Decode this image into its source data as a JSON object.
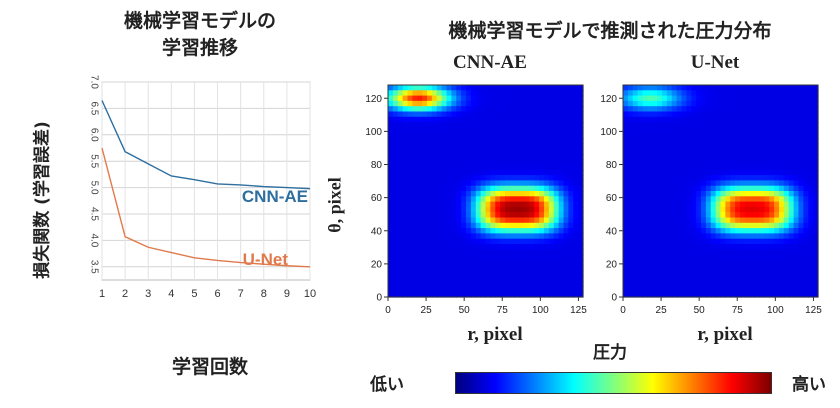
{
  "left_panel": {
    "title_line1": "機械学習モデルの",
    "title_line2": "学習推移"
  },
  "right_panel": {
    "title": "機械学習モデルで推測された圧力分布"
  },
  "colorbar": {
    "label": "圧力",
    "low_label": "低い",
    "high_label": "高い"
  },
  "colors": {
    "cnn_ae": "#2e6fa0",
    "u_net": "#e07a4c",
    "colormap": [
      "#00007f",
      "#0000ff",
      "#0080ff",
      "#00ffff",
      "#80ff80",
      "#ffff00",
      "#ff8000",
      "#ff0000",
      "#7f0000"
    ]
  },
  "chart_data": [
    {
      "type": "line",
      "title": "",
      "xlabel": "学習回数",
      "ylabel": "損失関数 (学習誤差)",
      "x": [
        1,
        2,
        3,
        4,
        5,
        6,
        7,
        8,
        9,
        10
      ],
      "xticks": [
        "1",
        "2",
        "3",
        "4",
        "5",
        "6",
        "7",
        "8",
        "9",
        "10"
      ],
      "yticks": [
        "3.5",
        "4.0",
        "4.5",
        "5.0",
        "5.5",
        "6.0",
        "6.5",
        "7.0"
      ],
      "ylim": [
        3.25,
        7.0
      ],
      "grid": true,
      "series": [
        {
          "name": "CNN-AE",
          "values": [
            6.65,
            5.68,
            5.45,
            5.22,
            5.15,
            5.07,
            5.05,
            5.02,
            5.0,
            4.98
          ]
        },
        {
          "name": "U-Net",
          "values": [
            5.75,
            4.07,
            3.87,
            3.77,
            3.67,
            3.62,
            3.58,
            3.55,
            3.52,
            3.5
          ]
        }
      ]
    },
    {
      "type": "heatmap",
      "title": "CNN-AE",
      "xlabel": "r, pixel",
      "ylabel": "θ, pixel",
      "xticks": [
        "0",
        "25",
        "50",
        "75",
        "100",
        "125"
      ],
      "yticks": [
        "0",
        "20",
        "40",
        "60",
        "80",
        "100",
        "120"
      ],
      "xlim": [
        0,
        128
      ],
      "ylim": [
        0,
        128
      ],
      "blobs": [
        {
          "x": 85,
          "y": 53,
          "peak": 0.97
        },
        {
          "x": 20,
          "y": 120,
          "peak": 0.85
        }
      ]
    },
    {
      "type": "heatmap",
      "title": "U-Net",
      "xlabel": "r, pixel",
      "xticks": [
        "0",
        "25",
        "50",
        "75",
        "100",
        "125"
      ],
      "yticks": [
        "0",
        "20",
        "40",
        "60",
        "80",
        "100",
        "120"
      ],
      "xlim": [
        0,
        128
      ],
      "ylim": [
        0,
        128
      ],
      "blobs": [
        {
          "x": 85,
          "y": 53,
          "peak": 0.9
        },
        {
          "x": 18,
          "y": 120,
          "peak": 0.45
        }
      ]
    }
  ]
}
